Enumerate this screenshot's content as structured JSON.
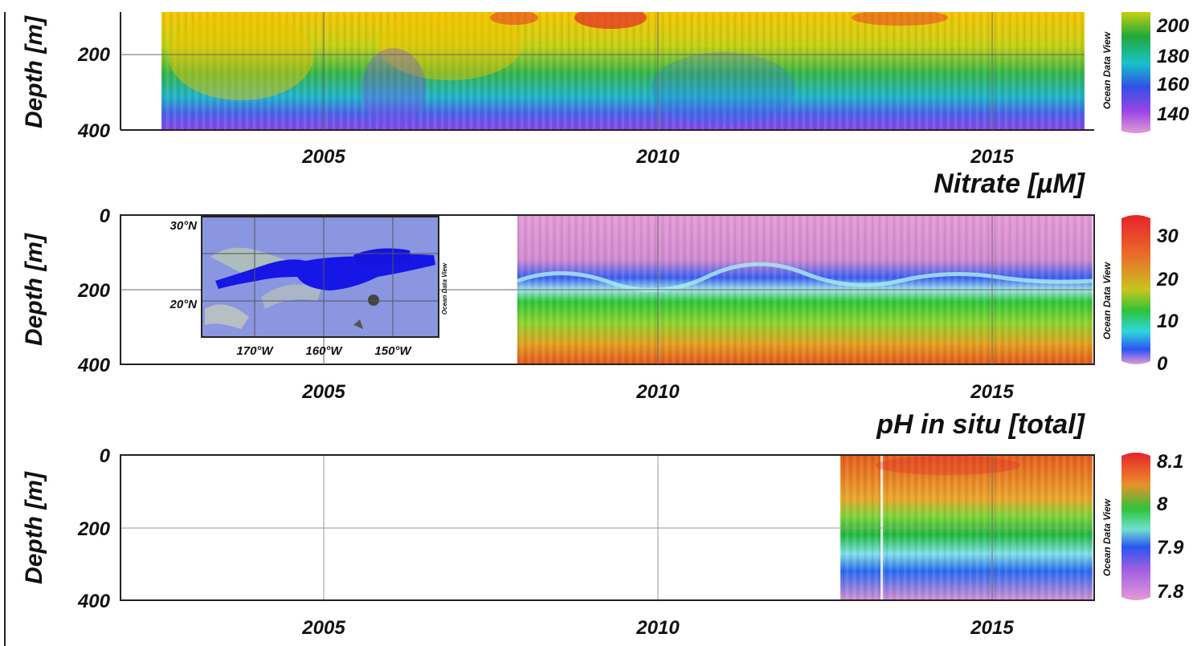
{
  "chart_data": [
    {
      "type": "heatmap",
      "title": "",
      "ylabel": "Depth [m]",
      "x_ticks": [
        2005,
        2010,
        2015
      ],
      "y_ticks": [
        200,
        400
      ],
      "xlim": [
        2002.1,
        2016.65
      ],
      "ylim": [
        0,
        400
      ],
      "data_xrange": [
        2002.6,
        2016.45
      ],
      "colorbar": {
        "ticks": [
          140,
          160,
          180,
          200
        ],
        "range": [
          130,
          215
        ]
      },
      "watermark": "Ocean Data View",
      "grid": true
    },
    {
      "type": "heatmap",
      "title": "Nitrate [µM]",
      "ylabel": "Depth [m]",
      "x_ticks": [
        2005,
        2010,
        2015
      ],
      "y_ticks": [
        0,
        200,
        400
      ],
      "xlim": [
        2002.1,
        2016.65
      ],
      "ylim": [
        0,
        400
      ],
      "data_xrange": [
        2008.0,
        2016.65
      ],
      "colorbar": {
        "ticks": [
          0,
          10,
          20,
          30
        ],
        "range": [
          0,
          35
        ]
      },
      "watermark": "Ocean Data View",
      "grid": true,
      "inset_map": {
        "lat_labels": [
          "30°N",
          "20°N"
        ],
        "lon_labels": [
          "170°W",
          "160°W",
          "150°W"
        ],
        "watermark": "Ocean Data View"
      }
    },
    {
      "type": "heatmap",
      "title": "pH in situ [total]",
      "ylabel": "Depth [m]",
      "x_ticks": [
        2005,
        2010,
        2015
      ],
      "y_ticks": [
        0,
        200,
        400
      ],
      "xlim": [
        2002.1,
        2016.65
      ],
      "ylim": [
        0,
        400
      ],
      "data_xrange": [
        2012.8,
        2016.65
      ],
      "colorbar": {
        "ticks": [
          7.8,
          7.9,
          8,
          8.1
        ],
        "range": [
          7.77,
          8.12
        ]
      },
      "watermark": "Ocean Data View",
      "grid": true
    }
  ],
  "panels": [
    {
      "ylabel": "Depth [m]",
      "yticks": [
        "200",
        "400"
      ],
      "xticks": [
        "2005",
        "2010",
        "2015"
      ],
      "watermark": "Ocean Data View",
      "cbar_labels": [
        "200",
        "180",
        "160",
        "140"
      ]
    },
    {
      "title": "Nitrate [µM]",
      "ylabel": "Depth [m]",
      "yticks": [
        "0",
        "200",
        "400"
      ],
      "xticks": [
        "2005",
        "2010",
        "2015"
      ],
      "watermark": "Ocean Data View",
      "cbar_labels": [
        "30",
        "20",
        "10",
        "0"
      ],
      "inset": {
        "lat": [
          "30°N",
          "20°N"
        ],
        "lon": [
          "170°W",
          "160°W",
          "150°W"
        ],
        "watermark": "Ocean Data View"
      }
    },
    {
      "title": "pH in situ [total]",
      "ylabel": "Depth [m]",
      "yticks": [
        "0",
        "200",
        "400"
      ],
      "xticks": [
        "2005",
        "2010",
        "2015"
      ],
      "watermark": "Ocean Data View",
      "cbar_labels": [
        "8.1",
        "8",
        "7.9",
        "7.8"
      ]
    }
  ]
}
